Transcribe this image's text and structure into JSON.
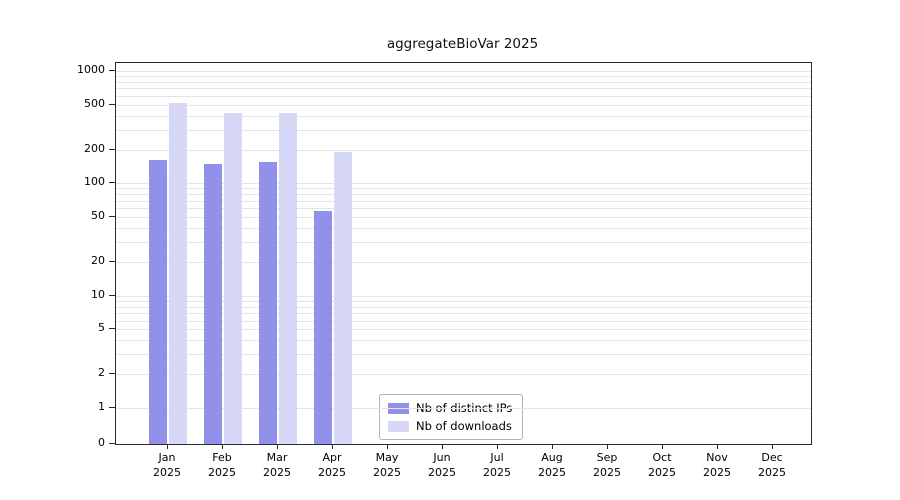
{
  "title": "aggregateBioVar 2025",
  "chart_data": {
    "type": "bar",
    "title": "aggregateBioVar 2025",
    "scale": "symlog",
    "categories": [
      "Jan",
      "Feb",
      "Mar",
      "Apr",
      "May",
      "Jun",
      "Jul",
      "Aug",
      "Sep",
      "Oct",
      "Nov",
      "Dec"
    ],
    "year": "2025",
    "series": [
      {
        "name": "Nb of distinct IPs",
        "color": "#9191ea",
        "values": [
          160,
          150,
          155,
          57,
          0,
          0,
          0,
          0,
          0,
          0,
          0,
          0
        ]
      },
      {
        "name": "Nb of downloads",
        "color": "#d7d7f7",
        "values": [
          520,
          420,
          420,
          190,
          0,
          0,
          0,
          0,
          0,
          0,
          0,
          0
        ]
      }
    ],
    "yticks": [
      0,
      1,
      2,
      5,
      10,
      20,
      50,
      100,
      200,
      500,
      1000
    ],
    "ylim": [
      0,
      1000
    ],
    "xlabel": "",
    "ylabel": "",
    "grid": "on",
    "legend_position": "lower center"
  },
  "colors": {
    "gridline": "#e4e4e4",
    "spine": "#2a2a2a",
    "background": "#ffffff"
  }
}
